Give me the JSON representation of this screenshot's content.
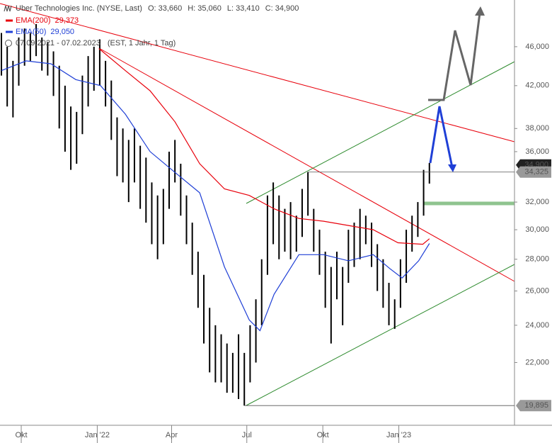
{
  "chart_data": {
    "type": "ohlc",
    "title": "Uber Technologies Inc. (NYSE, Last)",
    "quote": [
      {
        "name": "O:",
        "value": 33660,
        "label": "33,660"
      },
      {
        "name": "H:",
        "value": 35060,
        "label": "35,060"
      },
      {
        "name": "L:",
        "value": 33410,
        "label": "33,410"
      },
      {
        "name": "C:",
        "value": 34900,
        "label": "34,900"
      }
    ],
    "period": "07.09.2021 - 07.02.2023",
    "period_note": "(EST, 1 Jahr, 1 Tag)",
    "color": "#000000",
    "x": [
      0,
      7,
      14,
      21,
      28,
      35,
      42,
      49,
      56,
      63,
      70,
      77,
      84,
      91,
      98,
      105,
      112,
      119,
      126,
      133,
      140,
      147,
      154,
      161,
      168,
      175,
      182,
      189,
      196,
      203,
      210,
      217,
      224,
      231,
      238,
      245,
      252,
      259,
      266,
      273,
      280,
      287,
      294,
      301,
      308,
      315,
      322,
      329,
      336,
      343,
      350,
      357,
      364,
      371,
      378,
      385,
      392,
      399,
      406,
      413,
      420,
      427,
      434,
      441,
      448,
      455,
      462,
      469,
      476,
      483,
      490,
      497,
      504,
      511,
      518
    ],
    "high": [
      47500,
      46000,
      44500,
      47000,
      48000,
      47500,
      48500,
      47000,
      46500,
      45500,
      44000,
      42000,
      40000,
      39500,
      43000,
      45000,
      46000,
      46800,
      44500,
      42500,
      39000,
      38000,
      37000,
      38000,
      36500,
      35500,
      33500,
      32500,
      33000,
      36000,
      37000,
      35000,
      32500,
      30500,
      28500,
      27000,
      25000,
      24000,
      23500,
      23000,
      22500,
      23500,
      22500,
      24000,
      25500,
      28000,
      32500,
      33500,
      32500,
      31500,
      32000,
      31000,
      33000,
      34325,
      31500,
      30000,
      28500,
      27500,
      28500,
      27500,
      30000,
      30500,
      31500,
      31000,
      30500,
      29000,
      28000,
      26500,
      25500,
      28000,
      30000,
      31000,
      32000,
      34500,
      35060
    ],
    "low": [
      43000,
      40000,
      39000,
      42000,
      44000,
      44500,
      45000,
      43500,
      43000,
      41000,
      38000,
      36000,
      34500,
      35000,
      37500,
      40000,
      41500,
      42000,
      40000,
      37000,
      34000,
      33500,
      32000,
      33500,
      31500,
      30500,
      29000,
      28000,
      29000,
      31500,
      33500,
      31000,
      29000,
      27000,
      25000,
      23000,
      21500,
      21000,
      21000,
      20500,
      20500,
      20200,
      19895,
      21000,
      22000,
      24000,
      27000,
      29000,
      28000,
      28500,
      28000,
      28500,
      29500,
      31000,
      28500,
      27000,
      25000,
      23000,
      25500,
      24000,
      26500,
      27500,
      28000,
      29000,
      27500,
      26000,
      25000,
      24000,
      23800,
      25000,
      26500,
      28500,
      29500,
      31000,
      33410
    ],
    "series": [
      {
        "name": "EMA(200)",
        "color": "#e8000b",
        "value_label": "29,373",
        "x": [
          118,
          150,
          180,
          210,
          240,
          270,
          300,
          330,
          360,
          390,
          420,
          450,
          480,
          510,
          518
        ],
        "values": [
          45800,
          43500,
          41500,
          38600,
          35000,
          33000,
          32500,
          31500,
          30800,
          30600,
          30300,
          30000,
          29100,
          29000,
          29373
        ]
      },
      {
        "name": "EMA(50)",
        "color": "#1f3fd6",
        "value_label": "29,050",
        "x": [
          0,
          30,
          60,
          90,
          120,
          150,
          180,
          210,
          240,
          270,
          300,
          313,
          330,
          360,
          390,
          420,
          450,
          470,
          485,
          505,
          518
        ],
        "values": [
          43500,
          44500,
          44200,
          42600,
          42000,
          39300,
          36000,
          34300,
          32700,
          27500,
          24300,
          23700,
          25800,
          28300,
          28300,
          27900,
          28300,
          27400,
          26800,
          27900,
          29050
        ]
      }
    ],
    "price_labels": [
      {
        "value": 34900,
        "label": "34,900"
      },
      {
        "value": 34325,
        "label": "34,325"
      },
      {
        "value": 19895,
        "label": "19,895"
      }
    ],
    "xlim": [
      0,
      621
    ],
    "xticks": [
      {
        "value": 24,
        "label": "Okt"
      },
      {
        "value": 116,
        "label": "Jan '22"
      },
      {
        "value": 206,
        "label": "Apr"
      },
      {
        "value": 297,
        "label": "Jul"
      },
      {
        "value": 389,
        "label": "Okt"
      },
      {
        "value": 481,
        "label": "Jan '23"
      }
    ],
    "ylim": [
      19000,
      51300
    ],
    "yticks": [
      {
        "value": 22000,
        "label": "22,000"
      },
      {
        "value": 24000,
        "label": "24,000"
      },
      {
        "value": 26000,
        "label": "26,000"
      },
      {
        "value": 28000,
        "label": "28,000"
      },
      {
        "value": 30000,
        "label": "30,000"
      },
      {
        "value": 32000,
        "label": "32,000"
      },
      {
        "value": 36000,
        "label": "36,000"
      },
      {
        "value": 38000,
        "label": "38,000"
      },
      {
        "value": 42000,
        "label": "42,000"
      },
      {
        "value": 46000,
        "label": "46,000"
      }
    ],
    "log_scale": true
  }
}
